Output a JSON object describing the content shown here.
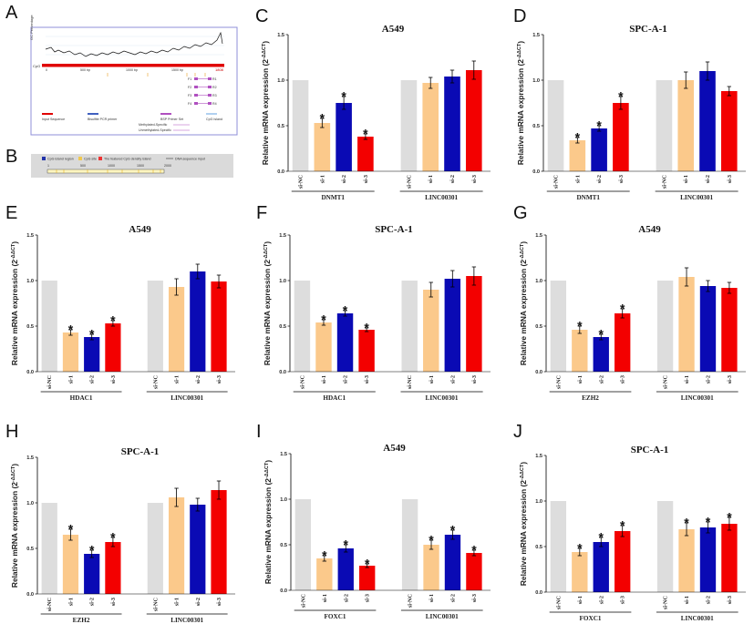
{
  "colors": {
    "si_nc": "#dddddd",
    "si_1": "#fbc98b",
    "si_2": "#0a0ab4",
    "si_3": "#f30000",
    "error_bar": "#000000"
  },
  "panel_a": {
    "label": "A",
    "axis_title": "GC Percentage",
    "cpg_label": "CpG",
    "ticks": [
      "0",
      "500 bp",
      "1000 bp",
      "1500 bp"
    ],
    "end_label": "1808",
    "primers": [
      {
        "left": "F1",
        "right": "R1"
      },
      {
        "left": "F2",
        "right": "R2"
      },
      {
        "left": "F3",
        "right": "R3"
      },
      {
        "left": "F4",
        "right": "R4"
      }
    ],
    "legend": [
      "Input Sequence",
      "Bisulfite PCR primer",
      "BSP Primer Set",
      "CpG Island"
    ],
    "legend_sub": [
      "Methylated-Specific",
      "Unmethylated-Specific"
    ]
  },
  "panel_b": {
    "label": "B",
    "legend": [
      "CpG island region",
      "CpG site",
      "The featured CpG density island",
      "DNA sequence input"
    ],
    "ticks": [
      "1",
      "500",
      "1000",
      "1500",
      "2000"
    ]
  },
  "chart_data": [
    {
      "panel": "C",
      "type": "bar",
      "title": "A549",
      "ylabel": "Relative mRNA expression (2^-ΔΔCT)",
      "ylim": [
        0,
        1.5
      ],
      "yticks": [
        "0.0",
        "0.5",
        "1.0",
        "1.5"
      ],
      "categories": [
        "si-NC",
        "si-1",
        "si-2",
        "si-3",
        "si-NC",
        "si-1",
        "si-2",
        "si-3"
      ],
      "groups": [
        "DNMT1",
        "LINC00301"
      ],
      "values": [
        1.0,
        0.53,
        0.75,
        0.38,
        1.0,
        0.97,
        1.04,
        1.11
      ],
      "errors": [
        0,
        0.05,
        0.07,
        0.03,
        0,
        0.06,
        0.07,
        0.1
      ],
      "significant": [
        false,
        true,
        true,
        true,
        false,
        false,
        false,
        false
      ]
    },
    {
      "panel": "D",
      "type": "bar",
      "title": "SPC-A-1",
      "ylabel": "Relative mRNA expression (2^-ΔΔCT)",
      "ylim": [
        0,
        1.5
      ],
      "yticks": [
        "0.0",
        "0.5",
        "1.0",
        "1.5"
      ],
      "categories": [
        "si-NC",
        "si-1",
        "si-2",
        "si-3",
        "si-NC",
        "si-1",
        "si-2",
        "si-3"
      ],
      "groups": [
        "DNMT1",
        "LINC00301"
      ],
      "values": [
        1.0,
        0.34,
        0.47,
        0.75,
        1.0,
        1.0,
        1.1,
        0.88
      ],
      "errors": [
        0,
        0.03,
        0.03,
        0.07,
        0,
        0.09,
        0.1,
        0.05
      ],
      "significant": [
        false,
        true,
        true,
        true,
        false,
        false,
        false,
        false
      ]
    },
    {
      "panel": "E",
      "type": "bar",
      "title": "A549",
      "ylabel": "Relative mRNA expression (2^-ΔΔCT)",
      "ylim": [
        0,
        1.5
      ],
      "yticks": [
        "0.0",
        "0.5",
        "1.0",
        "1.5"
      ],
      "categories": [
        "si-NC",
        "si-1",
        "si-2",
        "si-3",
        "si-NC",
        "si-1",
        "si-2",
        "si-3"
      ],
      "groups": [
        "HDAC1",
        "LINC00301"
      ],
      "values": [
        1.0,
        0.43,
        0.38,
        0.53,
        1.0,
        0.93,
        1.1,
        0.99
      ],
      "errors": [
        0,
        0.03,
        0.03,
        0.03,
        0,
        0.09,
        0.08,
        0.07
      ],
      "significant": [
        false,
        true,
        true,
        true,
        false,
        false,
        false,
        false
      ]
    },
    {
      "panel": "F",
      "type": "bar",
      "title": "SPC-A-1",
      "ylabel": "Relative mRNA expression (2^-ΔΔCT)",
      "ylim": [
        0,
        1.5
      ],
      "yticks": [
        "0.0",
        "0.5",
        "1.0",
        "1.5"
      ],
      "categories": [
        "si-NC",
        "si-1",
        "si-2",
        "si-3",
        "si-NC",
        "si-1",
        "si-2",
        "si-3"
      ],
      "groups": [
        "HDAC1",
        "LINC00301"
      ],
      "values": [
        1.0,
        0.54,
        0.64,
        0.46,
        1.0,
        0.9,
        1.02,
        1.05
      ],
      "errors": [
        0,
        0.03,
        0.03,
        0.02,
        0,
        0.08,
        0.09,
        0.1
      ],
      "significant": [
        false,
        true,
        true,
        true,
        false,
        false,
        false,
        false
      ]
    },
    {
      "panel": "G",
      "type": "bar",
      "title": "A549",
      "ylabel": "Relative mRNA expression (2^-ΔΔCT)",
      "ylim": [
        0,
        1.5
      ],
      "yticks": [
        "0.0",
        "0.5",
        "1.0",
        "1.5"
      ],
      "categories": [
        "si-NC",
        "si-1",
        "si-2",
        "si-3",
        "si-NC",
        "si-1",
        "si-2",
        "si-3"
      ],
      "groups": [
        "EZH2",
        "LINC00301"
      ],
      "values": [
        1.0,
        0.46,
        0.38,
        0.64,
        1.0,
        1.04,
        0.94,
        0.92
      ],
      "errors": [
        0,
        0.04,
        0.03,
        0.05,
        0,
        0.1,
        0.06,
        0.06
      ],
      "significant": [
        false,
        true,
        true,
        true,
        false,
        false,
        false,
        false
      ]
    },
    {
      "panel": "H",
      "type": "bar",
      "title": "SPC-A-1",
      "ylabel": "Relative mRNA expression (2^-ΔΔCT)",
      "ylim": [
        0,
        1.5
      ],
      "yticks": [
        "0.0",
        "0.5",
        "1.0",
        "1.5"
      ],
      "categories": [
        "si-NC",
        "si-1",
        "si-2",
        "si-3",
        "si-NC",
        "si-1",
        "si-2",
        "si-3"
      ],
      "groups": [
        "EZH2",
        "LINC00301"
      ],
      "values": [
        1.0,
        0.65,
        0.44,
        0.57,
        1.0,
        1.06,
        0.98,
        1.14
      ],
      "errors": [
        0,
        0.06,
        0.04,
        0.05,
        0,
        0.1,
        0.07,
        0.1
      ],
      "significant": [
        false,
        true,
        true,
        true,
        false,
        false,
        false,
        false
      ]
    },
    {
      "panel": "I",
      "type": "bar",
      "title": "A549",
      "ylabel": "Relative mRNA expression (2^-ΔΔCT)",
      "ylim": [
        0,
        1.5
      ],
      "yticks": [
        "0.0",
        "0.5",
        "1.0",
        "1.5"
      ],
      "categories": [
        "si-NC",
        "si-1",
        "si-2",
        "si-3",
        "si-NC",
        "si-1",
        "si-2",
        "si-3"
      ],
      "groups": [
        "FOXC1",
        "LINC00301"
      ],
      "values": [
        1.0,
        0.35,
        0.46,
        0.27,
        1.0,
        0.5,
        0.61,
        0.41
      ],
      "errors": [
        0,
        0.03,
        0.04,
        0.02,
        0,
        0.05,
        0.05,
        0.03
      ],
      "significant": [
        false,
        true,
        true,
        true,
        false,
        true,
        true,
        true
      ]
    },
    {
      "panel": "J",
      "type": "bar",
      "title": "SPC-A-1",
      "ylabel": "Relative mRNA expression (2^-ΔΔCT)",
      "ylim": [
        0,
        1.5
      ],
      "yticks": [
        "0.0",
        "0.5",
        "1.0",
        "1.5"
      ],
      "categories": [
        "si-NC",
        "si-1",
        "si-2",
        "si-3",
        "si-NC",
        "si-1",
        "si-2",
        "si-3"
      ],
      "groups": [
        "FOXC1",
        "LINC00301"
      ],
      "values": [
        1.0,
        0.44,
        0.55,
        0.67,
        1.0,
        0.69,
        0.71,
        0.75
      ],
      "errors": [
        0,
        0.04,
        0.05,
        0.06,
        0,
        0.07,
        0.06,
        0.07
      ],
      "significant": [
        false,
        true,
        true,
        true,
        false,
        true,
        true,
        true
      ]
    }
  ]
}
